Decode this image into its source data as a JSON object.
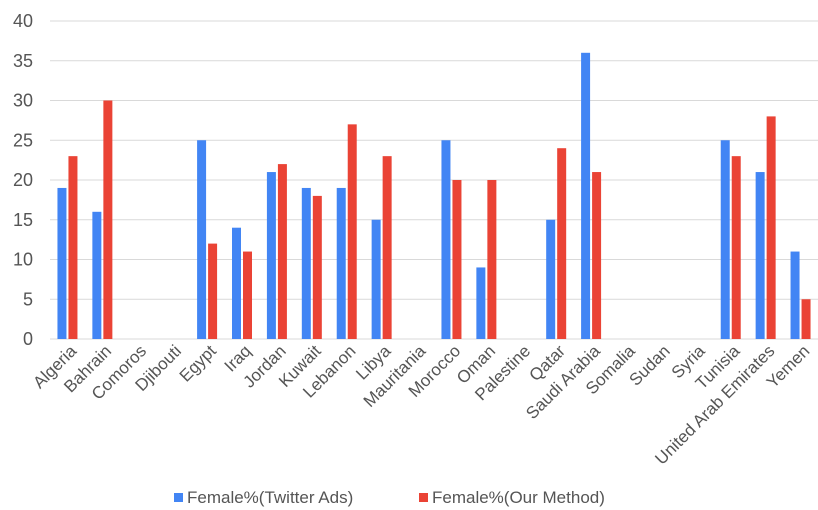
{
  "chart_data": {
    "type": "bar",
    "title": "",
    "xlabel": "",
    "ylabel": "",
    "ylim": [
      0,
      40
    ],
    "yticks": [
      0,
      5,
      10,
      15,
      20,
      25,
      30,
      35,
      40
    ],
    "grid": true,
    "legend_position": "bottom",
    "categories": [
      "Algeria",
      "Bahrain",
      "Comoros",
      "Djibouti",
      "Egypt",
      "Iraq",
      "Jordan",
      "Kuwait",
      "Lebanon",
      "Libya",
      "Mauritania",
      "Morocco",
      "Oman",
      "Palestine",
      "Qatar",
      "Saudi Arabia",
      "Somalia",
      "Sudan",
      "Syria",
      "Tunisia",
      "United Arab Emirates",
      "Yemen"
    ],
    "series": [
      {
        "name": "Female%(Twitter Ads)",
        "color": "#4285f4",
        "values": [
          19,
          16,
          null,
          null,
          25,
          14,
          21,
          19,
          19,
          15,
          null,
          25,
          9,
          null,
          15,
          36,
          null,
          null,
          null,
          25,
          21,
          11
        ]
      },
      {
        "name": "Female%(Our Method)",
        "color": "#ea4335",
        "values": [
          23,
          30,
          null,
          null,
          12,
          11,
          22,
          18,
          27,
          23,
          null,
          20,
          20,
          null,
          24,
          21,
          null,
          null,
          null,
          23,
          28,
          5
        ]
      }
    ]
  }
}
